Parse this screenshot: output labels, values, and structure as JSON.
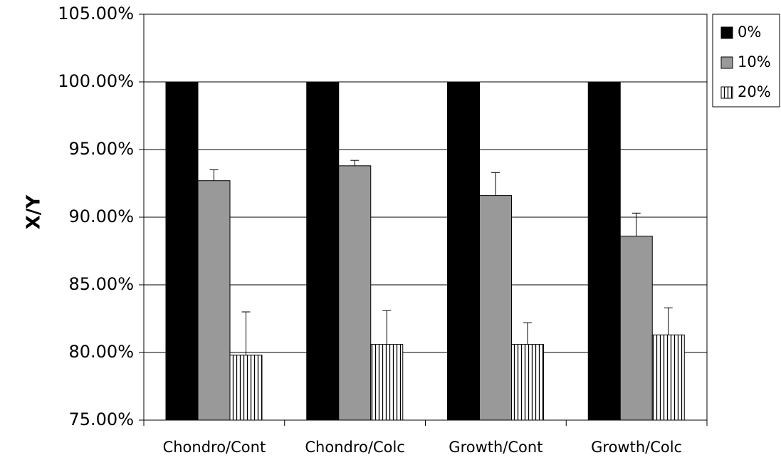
{
  "chart_data": {
    "type": "bar",
    "categories": [
      "Chondro/Cont",
      "Chondro/Colc",
      "Growth/Cont",
      "Growth/Colc"
    ],
    "series": [
      {
        "name": "0%",
        "values": [
          100,
          100,
          100,
          100
        ],
        "errors": [
          0,
          0,
          0,
          0
        ],
        "color": "#000000",
        "pattern": "solid"
      },
      {
        "name": "10%",
        "values": [
          92.7,
          93.8,
          91.6,
          88.6
        ],
        "errors": [
          0.8,
          0.4,
          1.7,
          1.7
        ],
        "color": "#999999",
        "pattern": "solid"
      },
      {
        "name": "20%",
        "values": [
          79.8,
          80.6,
          80.6,
          81.3
        ],
        "errors": [
          3.2,
          2.5,
          1.6,
          2.0
        ],
        "color": "#ffffff",
        "pattern": "vertical-stripes"
      }
    ],
    "ylabel": "X/Y",
    "ylim": [
      75,
      105
    ],
    "yticks": [
      {
        "value": 105,
        "label": "105.00%"
      },
      {
        "value": 100,
        "label": "100.00%"
      },
      {
        "value": 95,
        "label": "95.00%"
      },
      {
        "value": 90,
        "label": "90.00%"
      },
      {
        "value": 85,
        "label": "85.00%"
      },
      {
        "value": 80,
        "label": "80.00%"
      },
      {
        "value": 75,
        "label": "75.00%"
      }
    ],
    "grid": true,
    "legend_position": "top-right"
  }
}
